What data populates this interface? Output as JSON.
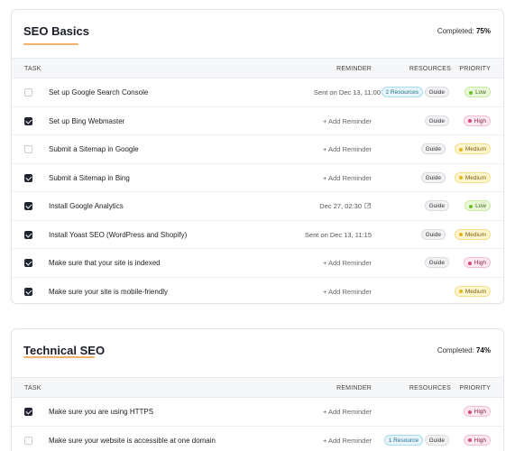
{
  "columns": {
    "task": "TASK",
    "reminder": "REMINDER",
    "resources": "RESOURCES",
    "priority": "PRIORITY"
  },
  "sections": [
    {
      "title": "SEO Basics",
      "completed_label": "Completed:",
      "completed_value": "75%",
      "rows": [
        {
          "checked": false,
          "task": "Set up Google Search Console",
          "reminder": "Sent on Dec 13, 11:00",
          "resource_count": "2 Resources",
          "guide": "Guide",
          "priority": "Low"
        },
        {
          "checked": true,
          "task": "Set up Bing Webmaster",
          "reminder": "+ Add Reminder",
          "guide": "Guide",
          "priority": "High"
        },
        {
          "checked": false,
          "task": "Submit a Sitemap in Google",
          "reminder": "+ Add Reminder",
          "guide": "Guide",
          "priority": "Medium"
        },
        {
          "checked": true,
          "task": "Submit a Sitemap in Bing",
          "reminder": "+ Add Reminder",
          "guide": "Guide",
          "priority": "Medium"
        },
        {
          "checked": true,
          "task": "Install Google Analytics",
          "reminder": "Dec 27, 02:30",
          "guide": "Guide",
          "priority": "Low"
        },
        {
          "checked": true,
          "task": "Install Yoast SEO (WordPress and Shopify)",
          "reminder": "Sent on Dec 13, 11:15",
          "guide": "Guide",
          "priority": "Medium"
        },
        {
          "checked": true,
          "task": "Make sure that your site is indexed",
          "reminder": "+ Add Reminder",
          "guide": "Guide",
          "priority": "High"
        },
        {
          "checked": true,
          "task": "Make sure your site is mobile-friendly",
          "reminder": "+ Add Reminder",
          "priority": "Medium"
        }
      ]
    },
    {
      "title": "Technical SEO",
      "completed_label": "Completed:",
      "completed_value": "74%",
      "rows": [
        {
          "checked": true,
          "task": "Make sure you are using HTTPS",
          "reminder": "+ Add Reminder",
          "priority": "High"
        },
        {
          "checked": false,
          "task": "Make sure your website is accessible at one domain",
          "reminder": "+ Add Reminder",
          "resource_count": "1 Resource",
          "guide": "Guide",
          "priority": "High"
        }
      ]
    }
  ],
  "icons": {
    "edit": "pencil-edit-icon",
    "check": "checkmark-icon"
  },
  "colors": {
    "accent_underline": "#f0b26c",
    "checkbox_checked": "#1f2430",
    "low": "#6cc02a",
    "high": "#e0457a",
    "medium": "#e7b416",
    "resource_blue": "#2a6f8a"
  }
}
